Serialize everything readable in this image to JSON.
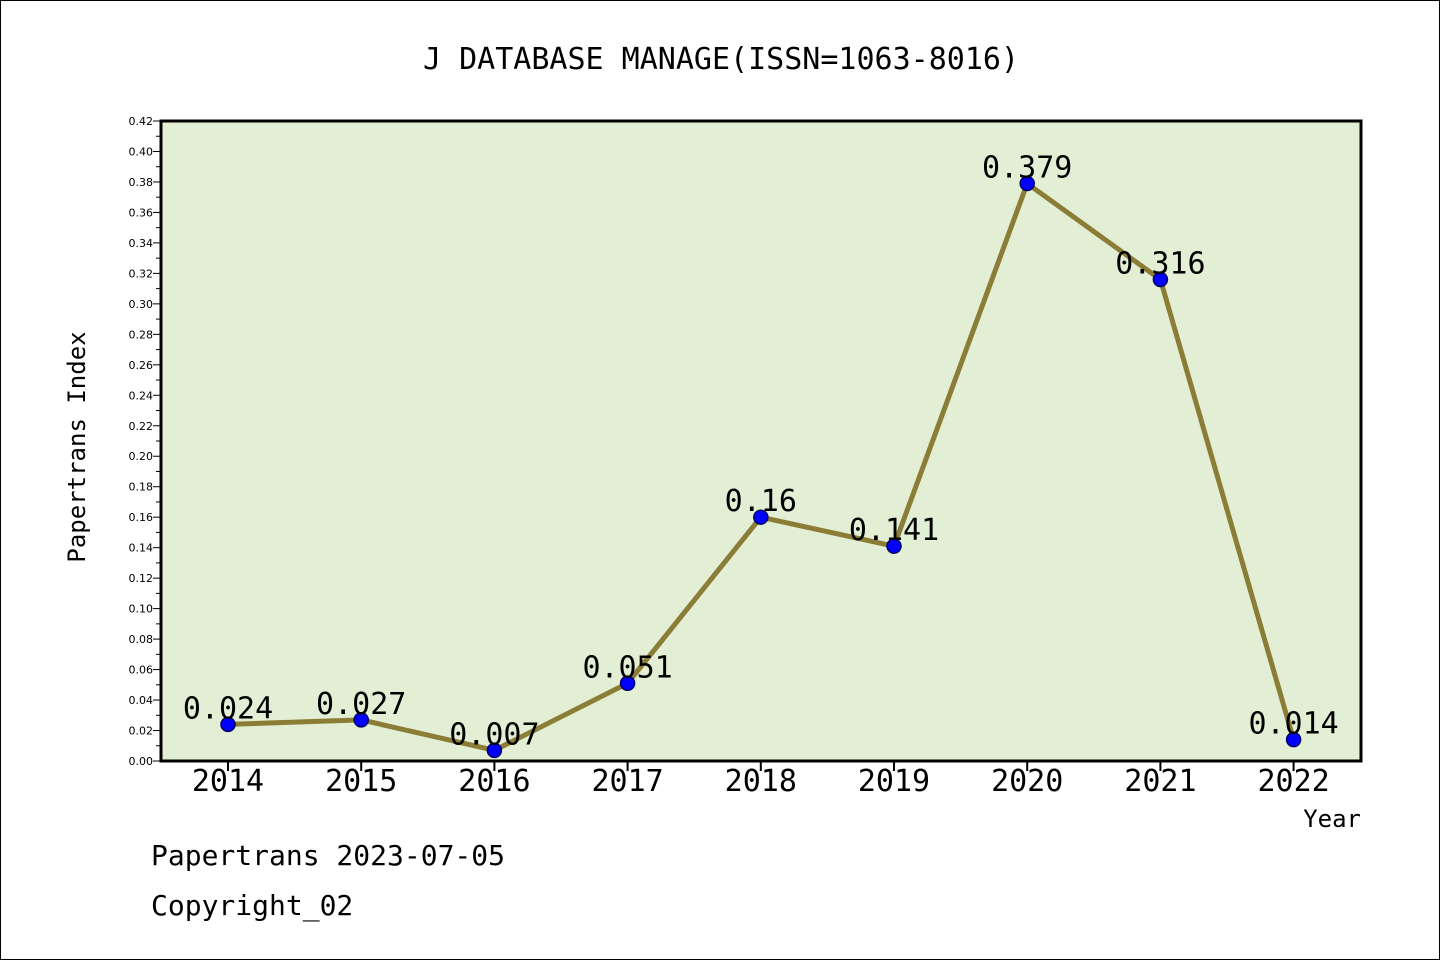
{
  "chart_data": {
    "type": "line",
    "title": "J DATABASE MANAGE(ISSN=1063-8016)",
    "xlabel": "Year",
    "ylabel": "Papertrans Index",
    "categories": [
      "2014",
      "2015",
      "2016",
      "2017",
      "2018",
      "2019",
      "2020",
      "2021",
      "2022"
    ],
    "values": [
      0.024,
      0.027,
      0.007,
      0.051,
      0.16,
      0.141,
      0.379,
      0.316,
      0.014
    ],
    "data_labels": [
      "0.024",
      "0.027",
      "0.007",
      "0.051",
      "0.16",
      "0.141",
      "0.379",
      "0.316",
      "0.014"
    ],
    "ylim": [
      0,
      0.42
    ],
    "yticks": [
      "0.00",
      "0.02",
      "0.04",
      "0.06",
      "0.08",
      "0.10",
      "0.12",
      "0.14",
      "0.16",
      "0.18",
      "0.20",
      "0.22",
      "0.24",
      "0.26",
      "0.28",
      "0.30",
      "0.32",
      "0.34",
      "0.36",
      "0.38",
      "0.40",
      "0.42"
    ],
    "grid": false,
    "legend": "none",
    "colors": {
      "plot_background": "#e2efd5",
      "line": "#8b7d35",
      "marker": "#0000ff",
      "marker_edge": "#000066"
    }
  },
  "footer": {
    "date_line": "Papertrans 2023-07-05",
    "copyright_line": "Copyright_02"
  }
}
